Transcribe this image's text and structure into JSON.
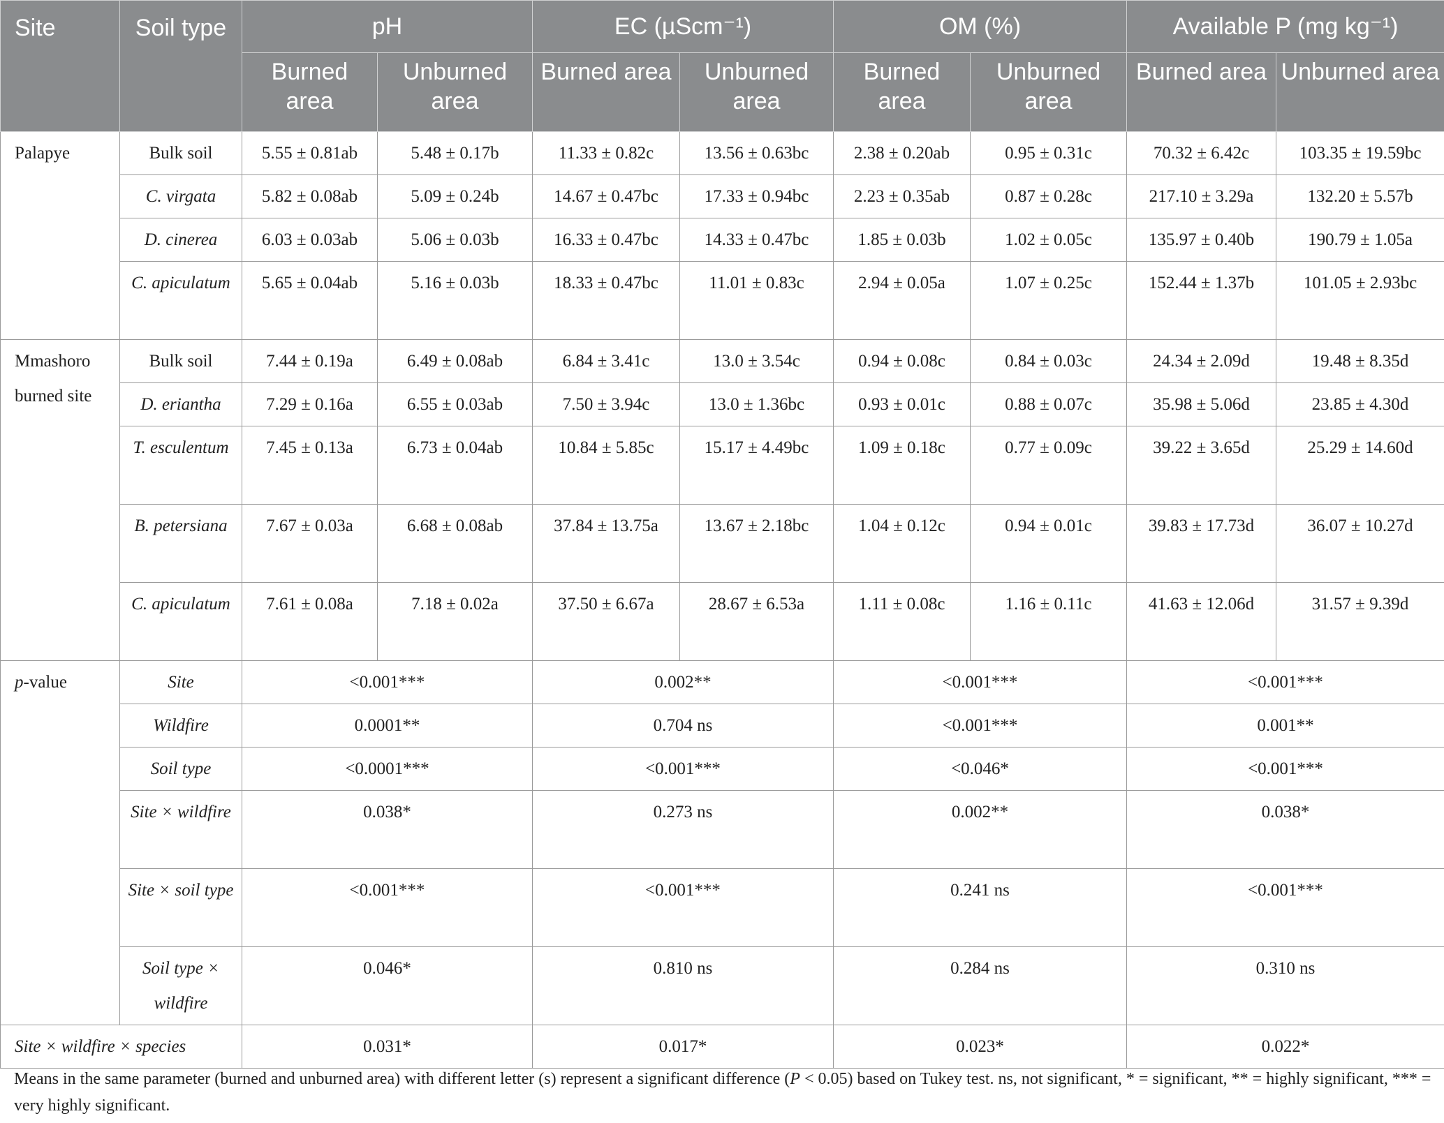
{
  "header": {
    "site": "Site",
    "soil_type": "Soil type",
    "groups": [
      "pH",
      "EC (µScm⁻¹)",
      "OM (%)",
      "Available P (mg kg⁻¹)"
    ],
    "sub": [
      "Burned area",
      "Unburned area"
    ]
  },
  "palapye": {
    "site": "Palapye",
    "rows": [
      {
        "type": "Bulk soil",
        "italic": false,
        "vals": [
          "5.55 ± 0.81ab",
          "5.48 ± 0.17b",
          "11.33 ± 0.82c",
          "13.56 ± 0.63bc",
          "2.38 ± 0.20ab",
          "0.95 ± 0.31c",
          "70.32 ± 6.42c",
          "103.35 ± 19.59bc"
        ]
      },
      {
        "type": "C. virgata",
        "italic": true,
        "vals": [
          "5.82 ± 0.08ab",
          "5.09 ± 0.24b",
          "14.67 ± 0.47bc",
          "17.33 ± 0.94bc",
          "2.23 ± 0.35ab",
          "0.87 ± 0.28c",
          "217.10 ± 3.29a",
          "132.20 ± 5.57b"
        ]
      },
      {
        "type": "D. cinerea",
        "italic": true,
        "vals": [
          "6.03 ± 0.03ab",
          "5.06 ± 0.03b",
          "16.33 ± 0.47bc",
          "14.33 ± 0.47bc",
          "1.85 ± 0.03b",
          "1.02 ± 0.05c",
          "135.97 ± 0.40b",
          "190.79 ± 1.05a"
        ]
      },
      {
        "type": "C. apiculatum",
        "italic": true,
        "vals": [
          "5.65 ± 0.04ab",
          "5.16 ± 0.03b",
          "18.33 ± 0.47bc",
          "11.01 ± 0.83c",
          "2.94 ± 0.05a",
          "1.07 ± 0.25c",
          "152.44 ± 1.37b",
          "101.05 ± 2.93bc"
        ]
      }
    ]
  },
  "mmashoro": {
    "site": "Mmashoro burned site",
    "rows": [
      {
        "type": "Bulk soil",
        "italic": false,
        "vals": [
          "7.44 ± 0.19a",
          "6.49 ± 0.08ab",
          "6.84 ± 3.41c",
          "13.0 ± 3.54c",
          "0.94 ± 0.08c",
          "0.84 ± 0.03c",
          "24.34 ± 2.09d",
          "19.48 ± 8.35d"
        ]
      },
      {
        "type": "D. eriantha",
        "italic": true,
        "vals": [
          "7.29 ± 0.16a",
          "6.55 ± 0.03ab",
          "7.50 ± 3.94c",
          "13.0 ± 1.36bc",
          "0.93 ± 0.01c",
          "0.88 ± 0.07c",
          "35.98 ± 5.06d",
          "23.85 ± 4.30d"
        ]
      },
      {
        "type": "T. esculentum",
        "italic": true,
        "vals": [
          "7.45 ± 0.13a",
          "6.73 ± 0.04ab",
          "10.84 ± 5.85c",
          "15.17 ± 4.49bc",
          "1.09 ± 0.18c",
          "0.77 ± 0.09c",
          "39.22 ± 3.65d",
          "25.29 ± 14.60d"
        ]
      },
      {
        "type": "B. petersiana",
        "italic": true,
        "vals": [
          "7.67 ± 0.03a",
          "6.68 ± 0.08ab",
          "37.84 ± 13.75a",
          "13.67 ± 2.18bc",
          "1.04 ± 0.12c",
          "0.94 ± 0.01c",
          "39.83 ± 17.73d",
          "36.07 ± 10.27d"
        ]
      },
      {
        "type": "C. apiculatum",
        "italic": true,
        "vals": [
          "7.61 ± 0.08a",
          "7.18 ± 0.02a",
          "37.50 ± 6.67a",
          "28.67 ± 6.53a",
          "1.11 ± 0.08c",
          "1.16 ± 0.11c",
          "41.63 ± 12.06d",
          "31.57 ± 9.39d"
        ]
      }
    ]
  },
  "pvalue": {
    "label_p": "p",
    "label_rest": "-value",
    "rows": [
      {
        "factor": "Site",
        "vals": [
          "<0.001***",
          "0.002**",
          "<0.001***",
          "<0.001***"
        ]
      },
      {
        "factor": "Wildfire",
        "vals": [
          "0.0001**",
          "0.704 ns",
          "<0.001***",
          "0.001**"
        ]
      },
      {
        "factor": "Soil type",
        "vals": [
          "<0.0001***",
          "<0.001***",
          "<0.046*",
          "<0.001***"
        ]
      },
      {
        "factor": "Site × wildfire",
        "vals": [
          "0.038*",
          "0.273 ns",
          "0.002**",
          "0.038*"
        ]
      },
      {
        "factor": "Site × soil type",
        "vals": [
          "<0.001***",
          "<0.001***",
          "0.241 ns",
          "<0.001***"
        ]
      },
      {
        "factor": "Soil type × wildfire",
        "vals": [
          "0.046*",
          "0.810 ns",
          "0.284 ns",
          "0.310 ns"
        ]
      }
    ]
  },
  "interaction": {
    "label": "Site × wildfire × species",
    "vals": [
      "0.031*",
      "0.017*",
      "0.023*",
      "0.022*"
    ]
  },
  "caption": {
    "part1": "Means in the same parameter (burned and unburned area) with different letter (s) represent a significant difference (",
    "p_symbol": "P",
    "part2": " < 0.05) based on Tukey test. ns, not significant, * = significant, ** = highly significant, *** = very highly significant."
  }
}
